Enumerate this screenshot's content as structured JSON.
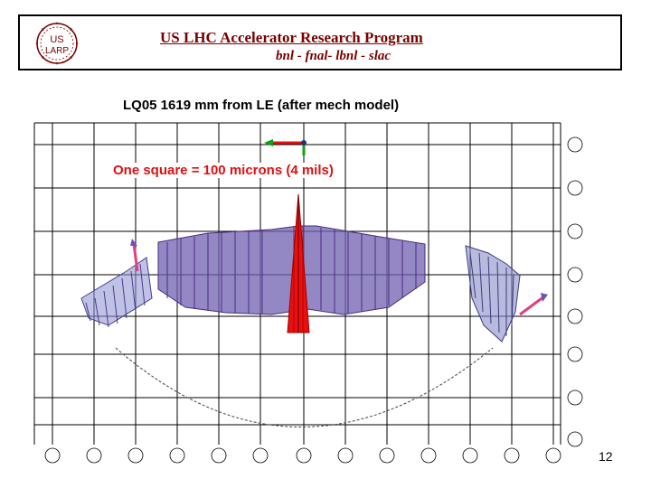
{
  "header": {
    "logo_top": "US",
    "logo_bottom": "LARP",
    "title": "US LHC Accelerator Research Program",
    "subtitle": "bnl - fnal- lbnl - slac"
  },
  "slide": {
    "title": "LQ05  1619 mm from LE (after mech model)",
    "scale_note": "One square = 100 microns (4 mils)",
    "page_number": "12"
  },
  "colors": {
    "header_text": "#7a0000",
    "note": "#e01010",
    "deformation": "#5a4aa0",
    "highlight": "#e81010"
  }
}
